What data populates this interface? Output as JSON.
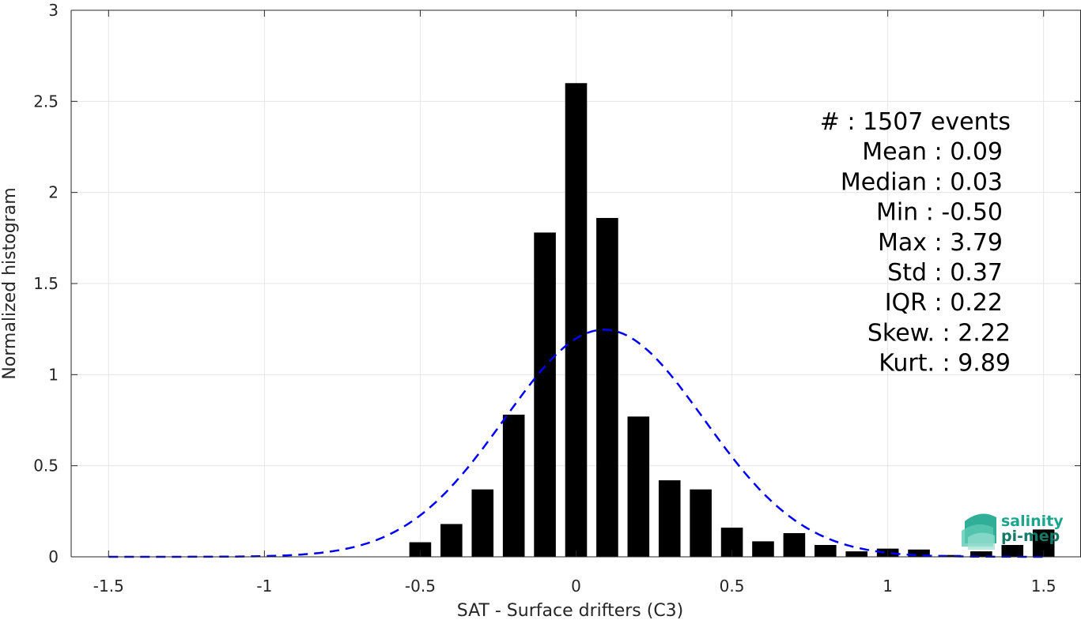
{
  "chart_data": {
    "type": "bar",
    "xlabel": "SAT - Surface drifters (C3)",
    "ylabel": "Normalized histogram",
    "xlim": [
      -1.62,
      1.62
    ],
    "ylim": [
      0,
      3
    ],
    "xticks": [
      -1.5,
      -1,
      -0.5,
      0,
      0.5,
      1,
      1.5
    ],
    "xtick_labels": [
      "-1.5",
      "-1",
      "-0.5",
      "0",
      "0.5",
      "1",
      "1.5"
    ],
    "yticks": [
      0,
      0.5,
      1,
      1.5,
      2,
      2.5,
      3
    ],
    "ytick_labels": [
      "0",
      "0.5",
      "1",
      "1.5",
      "2",
      "2.5",
      "3"
    ],
    "grid": true,
    "bar_width": 0.07,
    "bars": {
      "x": [
        -0.5,
        -0.4,
        -0.3,
        -0.2,
        -0.1,
        0.0,
        0.1,
        0.2,
        0.3,
        0.4,
        0.5,
        0.6,
        0.7,
        0.8,
        0.9,
        1.0,
        1.1,
        1.2,
        1.3,
        1.4,
        1.5
      ],
      "values": [
        0.08,
        0.18,
        0.37,
        0.78,
        1.78,
        2.6,
        1.86,
        0.77,
        0.42,
        0.37,
        0.16,
        0.085,
        0.13,
        0.065,
        0.03,
        0.045,
        0.04,
        0.01,
        0.03,
        0.065,
        0.15
      ],
      "color": "#000000"
    },
    "fit_curve": {
      "style": "dashed",
      "color": "#0000ff",
      "mean": 0.09,
      "std": 0.32
    },
    "stats": [
      {
        "label": "#  : 1507 events"
      },
      {
        "label": "Mean : 0.09"
      },
      {
        "label": "Median : 0.03"
      },
      {
        "label": "Min : -0.50"
      },
      {
        "label": "Max : 3.79"
      },
      {
        "label": "Std : 0.37"
      },
      {
        "label": "IQR : 0.22"
      },
      {
        "label": "Skew. : 2.22"
      },
      {
        "label": "Kurt. : 9.89"
      }
    ]
  },
  "logo": {
    "line1": "salinity",
    "line2": "pi-mep",
    "color": "#1aa58c"
  }
}
